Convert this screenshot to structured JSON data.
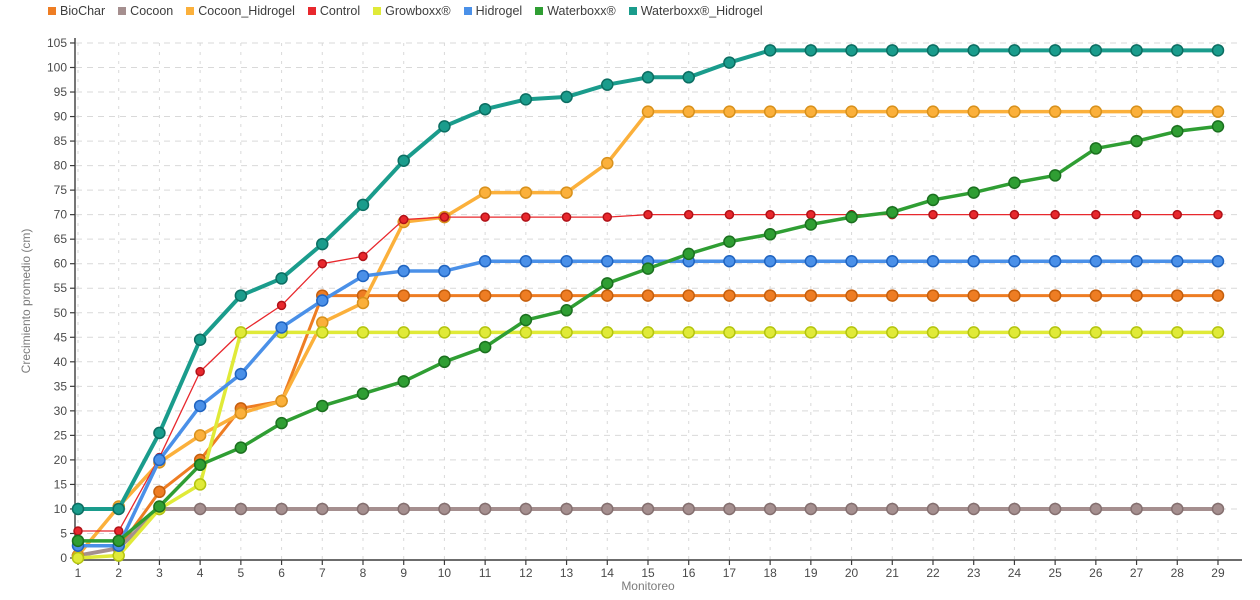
{
  "chart_data": {
    "type": "line",
    "title": "",
    "xlabel": "Monitoreo",
    "ylabel": "Crecimiento promedio (cm)",
    "x": [
      1,
      2,
      3,
      4,
      5,
      6,
      7,
      8,
      9,
      10,
      11,
      12,
      13,
      14,
      15,
      16,
      17,
      18,
      19,
      20,
      21,
      22,
      23,
      24,
      25,
      26,
      27,
      28,
      29
    ],
    "ylim": [
      0,
      105
    ],
    "ytick_step": 5,
    "grid": true,
    "legend_position": "top-left",
    "series": [
      {
        "name": "BioChar",
        "color": "#ee7d23",
        "dark": "#c55f0d",
        "line_width": 3,
        "marker_radius": 5.5,
        "values": [
          0.5,
          2,
          13.5,
          20,
          30.5,
          32,
          53.5,
          53.5,
          53.5,
          53.5,
          53.5,
          53.5,
          53.5,
          53.5,
          53.5,
          53.5,
          53.5,
          53.5,
          53.5,
          53.5,
          53.5,
          53.5,
          53.5,
          53.5,
          53.5,
          53.5,
          53.5,
          53.5,
          53.5
        ]
      },
      {
        "name": "Cocoon",
        "color": "#a58f8f",
        "dark": "#857070",
        "line_width": 4,
        "marker_radius": 5.5,
        "values": [
          0.5,
          2,
          10,
          10,
          10,
          10,
          10,
          10,
          10,
          10,
          10,
          10,
          10,
          10,
          10,
          10,
          10,
          10,
          10,
          10,
          10,
          10,
          10,
          10,
          10,
          10,
          10,
          10,
          10
        ]
      },
      {
        "name": "Cocoon_Hidrogel",
        "color": "#fbb03b",
        "dark": "#d8911c",
        "line_width": 3.5,
        "marker_radius": 5.5,
        "values": [
          0.5,
          10.5,
          19.5,
          25,
          29.5,
          32,
          48,
          52,
          68.5,
          69.5,
          74.5,
          74.5,
          74.5,
          80.5,
          91,
          91,
          91,
          91,
          91,
          91,
          91,
          91,
          91,
          91,
          91,
          91,
          91,
          91,
          91
        ]
      },
      {
        "name": "Control",
        "color": "#e8282d",
        "dark": "#b01218",
        "line_width": 1.3,
        "marker_radius": 4,
        "values": [
          5.5,
          5.5,
          20.5,
          38,
          46,
          51.5,
          60,
          61.5,
          69,
          69.5,
          69.5,
          69.5,
          69.5,
          69.5,
          70,
          70,
          70,
          70,
          70,
          70,
          70,
          70,
          70,
          70,
          70,
          70,
          70,
          70,
          70
        ]
      },
      {
        "name": "Growboxx®",
        "color": "#e0ea38",
        "dark": "#b4c410",
        "line_width": 3.5,
        "marker_radius": 5.5,
        "values": [
          0,
          0.5,
          10,
          15,
          46,
          46,
          46,
          46,
          46,
          46,
          46,
          46,
          46,
          46,
          46,
          46,
          46,
          46,
          46,
          46,
          46,
          46,
          46,
          46,
          46,
          46,
          46,
          46,
          46
        ]
      },
      {
        "name": "Hidrogel",
        "color": "#4a90e8",
        "dark": "#2064c0",
        "line_width": 3.5,
        "marker_radius": 5.5,
        "values": [
          2.5,
          2.5,
          20,
          31,
          37.5,
          47,
          52.5,
          57.5,
          58.5,
          58.5,
          60.5,
          60.5,
          60.5,
          60.5,
          60.5,
          60.5,
          60.5,
          60.5,
          60.5,
          60.5,
          60.5,
          60.5,
          60.5,
          60.5,
          60.5,
          60.5,
          60.5,
          60.5,
          60.5
        ]
      },
      {
        "name": "Waterboxx®",
        "color": "#2f9e33",
        "dark": "#1b701f",
        "line_width": 3.5,
        "marker_radius": 5.5,
        "values": [
          3.5,
          3.5,
          10.5,
          19,
          22.5,
          27.5,
          31,
          33.5,
          36,
          40,
          43,
          48.5,
          50.5,
          56,
          59,
          62,
          64.5,
          66,
          68,
          69.5,
          70.5,
          73,
          74.5,
          76.5,
          78,
          83.5,
          85,
          87,
          88
        ]
      },
      {
        "name": "Waterboxx®_Hidrogel",
        "color": "#1a9c8c",
        "dark": "#0c6e62",
        "line_width": 4,
        "marker_radius": 5.5,
        "values": [
          10,
          10,
          25.5,
          44.5,
          53.5,
          57,
          64,
          72,
          81,
          88,
          91.5,
          93.5,
          94,
          96.5,
          98,
          98,
          101,
          103.5,
          103.5,
          103.5,
          103.5,
          103.5,
          103.5,
          103.5,
          103.5,
          103.5,
          103.5,
          103.5,
          103.5
        ]
      }
    ],
    "style": {
      "grid_color": "#d9d9d9",
      "axis_color": "#3c3c3c",
      "tick_text_color": "#4a4a4a",
      "axis_title_color": "#7b7b7b",
      "background": "#ffffff"
    }
  }
}
